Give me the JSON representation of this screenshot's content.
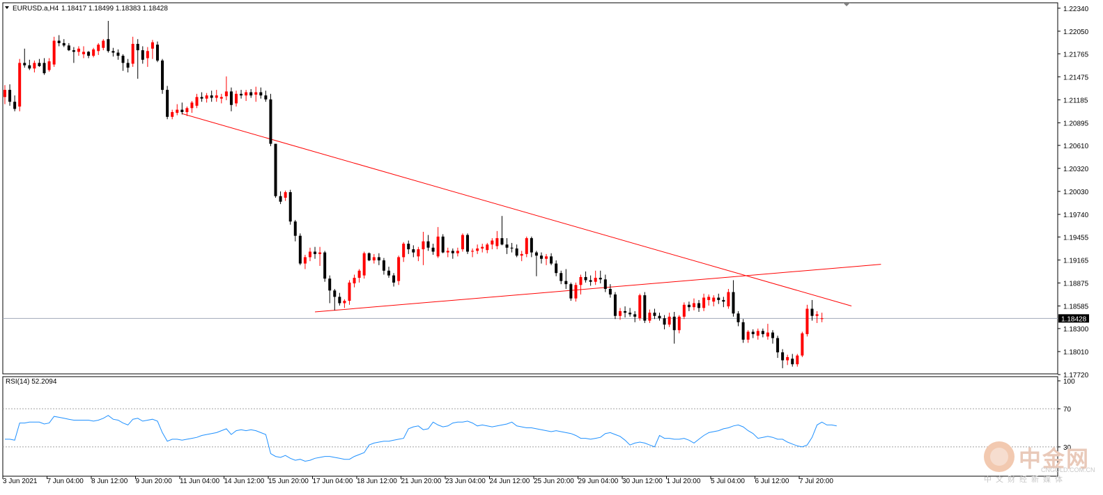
{
  "chart_data": [
    {
      "type": "candlestick",
      "symbol_header": "EURUSD.a,H4",
      "ohlc_header": "1.18417 1.18499 1.18383 1.18428",
      "current_price_label": "1.18428",
      "current_price": 1.18428,
      "ylim": [
        1.1772,
        1.2234
      ],
      "yticks": [
        "1.22340",
        "1.22050",
        "1.21765",
        "1.21475",
        "1.21185",
        "1.20895",
        "1.20610",
        "1.20320",
        "1.20030",
        "1.19740",
        "1.19455",
        "1.19165",
        "1.18875",
        "1.18585",
        "1.18300",
        "1.18010",
        "1.17720"
      ],
      "xticks": [
        "3 Jun 2021",
        "7 Jun 04:00",
        "8 Jun 12:00",
        "9 Jun 20:00",
        "11 Jun 04:00",
        "14 Jun 12:00",
        "15 Jun 20:00",
        "17 Jun 04:00",
        "18 Jun 12:00",
        "21 Jun 20:00",
        "23 Jun 04:00",
        "24 Jun 12:00",
        "25 Jun 20:00",
        "29 Jun 04:00",
        "30 Jun 12:00",
        "1 Jul 20:00",
        "5 Jul 04:00",
        "6 Jul 12:00",
        "7 Jul 20:00"
      ],
      "candles": [
        [
          1.2122,
          1.2137,
          1.2113,
          1.2131
        ],
        [
          1.2131,
          1.2138,
          1.2111,
          1.2116
        ],
        [
          1.2116,
          1.2124,
          1.2104,
          1.2107
        ],
        [
          1.211,
          1.217,
          1.2104,
          1.2165
        ],
        [
          1.2165,
          1.2183,
          1.2159,
          1.2162
        ],
        [
          1.2162,
          1.2169,
          1.2156,
          1.2158
        ],
        [
          1.2158,
          1.2168,
          1.2153,
          1.2165
        ],
        [
          1.2165,
          1.217,
          1.216,
          1.2161
        ],
        [
          1.2165,
          1.2171,
          1.215,
          1.2152
        ],
        [
          1.2156,
          1.2171,
          1.2154,
          1.2167
        ],
        [
          1.2163,
          1.2198,
          1.216,
          1.2193
        ],
        [
          1.2193,
          1.22,
          1.2186,
          1.219
        ],
        [
          1.219,
          1.2195,
          1.2185,
          1.2187
        ],
        [
          1.2187,
          1.219,
          1.218,
          1.2181
        ],
        [
          1.2181,
          1.2185,
          1.2165,
          1.2179
        ],
        [
          1.2179,
          1.2186,
          1.2174,
          1.2183
        ],
        [
          1.2176,
          1.2186,
          1.2171,
          1.2179
        ],
        [
          1.2179,
          1.218,
          1.2171,
          1.2174
        ],
        [
          1.2174,
          1.2184,
          1.2172,
          1.2182
        ],
        [
          1.218,
          1.219,
          1.2175,
          1.2188
        ],
        [
          1.2184,
          1.2195,
          1.2181,
          1.2193
        ],
        [
          1.2195,
          1.2218,
          1.2178,
          1.218
        ],
        [
          1.218,
          1.2184,
          1.2173,
          1.2178
        ],
        [
          1.2178,
          1.2182,
          1.2169,
          1.2174
        ],
        [
          1.2174,
          1.2176,
          1.2155,
          1.2165
        ],
        [
          1.2165,
          1.217,
          1.2153,
          1.2159
        ],
        [
          1.2164,
          1.2198,
          1.216,
          1.2189
        ],
        [
          1.2189,
          1.2195,
          1.2145,
          1.2181
        ],
        [
          1.2181,
          1.2186,
          1.2164,
          1.2169
        ],
        [
          1.2171,
          1.2185,
          1.216,
          1.218
        ],
        [
          1.2183,
          1.2194,
          1.217,
          1.2191
        ],
        [
          1.2188,
          1.2192,
          1.2166,
          1.2168
        ],
        [
          1.2168,
          1.217,
          1.2126,
          1.2131
        ],
        [
          1.2131,
          1.2136,
          1.2094,
          1.2097
        ],
        [
          1.2097,
          1.2106,
          1.2094,
          1.2103
        ],
        [
          1.2102,
          1.2113,
          1.2099,
          1.2106
        ],
        [
          1.2106,
          1.2115,
          1.21,
          1.2103
        ],
        [
          1.2103,
          1.211,
          1.2098,
          1.2108
        ],
        [
          1.2108,
          1.2117,
          1.2102,
          1.2115
        ],
        [
          1.2111,
          1.2126,
          1.2108,
          1.2122
        ],
        [
          1.2122,
          1.2128,
          1.2116,
          1.212
        ],
        [
          1.212,
          1.2127,
          1.2115,
          1.2124
        ],
        [
          1.2124,
          1.213,
          1.2116,
          1.2121
        ],
        [
          1.2121,
          1.2131,
          1.2116,
          1.2124
        ],
        [
          1.212,
          1.2126,
          1.2114,
          1.2122
        ],
        [
          1.2123,
          1.2148,
          1.2118,
          1.2129
        ],
        [
          1.2129,
          1.2134,
          1.2104,
          1.2112
        ],
        [
          1.2114,
          1.213,
          1.211,
          1.2126
        ],
        [
          1.2126,
          1.2131,
          1.212,
          1.2124
        ],
        [
          1.2124,
          1.2131,
          1.2117,
          1.2128
        ],
        [
          1.2128,
          1.2132,
          1.2121,
          1.2124
        ],
        [
          1.2125,
          1.2135,
          1.2116,
          1.2128
        ],
        [
          1.2128,
          1.2134,
          1.212,
          1.2124
        ],
        [
          1.2124,
          1.213,
          1.2116,
          1.2119
        ],
        [
          1.2119,
          1.2126,
          1.206,
          1.2063
        ],
        [
          1.2063,
          1.2063,
          1.1995,
          1.1997
        ],
        [
          1.1997,
          1.2003,
          1.1987,
          1.199
        ],
        [
          1.1995,
          1.2004,
          1.1991,
          1.2002
        ],
        [
          1.2002,
          1.2005,
          1.1961,
          1.1965
        ],
        [
          1.1965,
          1.1967,
          1.194,
          1.1947
        ],
        [
          1.1947,
          1.195,
          1.191,
          1.1912
        ],
        [
          1.1912,
          1.1923,
          1.1905,
          1.192
        ],
        [
          1.192,
          1.1932,
          1.1915,
          1.1927
        ],
        [
          1.1927,
          1.1933,
          1.1918,
          1.1924
        ],
        [
          1.1924,
          1.1933,
          1.1909,
          1.1926
        ],
        [
          1.1926,
          1.1928,
          1.1889,
          1.1893
        ],
        [
          1.1893,
          1.1897,
          1.1862,
          1.1878
        ],
        [
          1.1878,
          1.188,
          1.1853,
          1.187
        ],
        [
          1.187,
          1.1875,
          1.1859,
          1.1862
        ],
        [
          1.1862,
          1.1867,
          1.1856,
          1.1865
        ],
        [
          1.1865,
          1.1891,
          1.186,
          1.1888
        ],
        [
          1.1887,
          1.1898,
          1.1882,
          1.1894
        ],
        [
          1.1894,
          1.1905,
          1.1888,
          1.1903
        ],
        [
          1.1897,
          1.1927,
          1.1893,
          1.1925
        ],
        [
          1.1925,
          1.1926,
          1.1915,
          1.1916
        ],
        [
          1.1916,
          1.1924,
          1.1912,
          1.192
        ],
        [
          1.192,
          1.1925,
          1.191,
          1.1916
        ],
        [
          1.1916,
          1.1919,
          1.1898,
          1.1903
        ],
        [
          1.1903,
          1.1908,
          1.1894,
          1.1897
        ],
        [
          1.1897,
          1.19,
          1.1883,
          1.1888
        ],
        [
          1.189,
          1.1922,
          1.1885,
          1.192
        ],
        [
          1.192,
          1.1939,
          1.1914,
          1.1937
        ],
        [
          1.1937,
          1.1941,
          1.1924,
          1.193
        ],
        [
          1.193,
          1.1935,
          1.192,
          1.1926
        ],
        [
          1.1921,
          1.1933,
          1.1915,
          1.193
        ],
        [
          1.193,
          1.1952,
          1.191,
          1.194
        ],
        [
          1.194,
          1.1948,
          1.1928,
          1.1932
        ],
        [
          1.1932,
          1.1937,
          1.1923,
          1.1927
        ],
        [
          1.1921,
          1.1958,
          1.1919,
          1.1946
        ],
        [
          1.1946,
          1.1949,
          1.1925,
          1.1926
        ],
        [
          1.1926,
          1.1932,
          1.192,
          1.1928
        ],
        [
          1.1928,
          1.1931,
          1.1918,
          1.1925
        ],
        [
          1.1925,
          1.1932,
          1.1921,
          1.1928
        ],
        [
          1.193,
          1.195,
          1.1927,
          1.1948
        ],
        [
          1.1948,
          1.195,
          1.1924,
          1.1927
        ],
        [
          1.1927,
          1.1931,
          1.192,
          1.1928
        ],
        [
          1.1928,
          1.1936,
          1.1924,
          1.1931
        ],
        [
          1.1931,
          1.1937,
          1.1926,
          1.1933
        ],
        [
          1.1929,
          1.1938,
          1.1925,
          1.1936
        ],
        [
          1.1936,
          1.1944,
          1.193,
          1.1941
        ],
        [
          1.1934,
          1.1953,
          1.193,
          1.1944
        ],
        [
          1.1944,
          1.1972,
          1.1935,
          1.1936
        ],
        [
          1.1936,
          1.1944,
          1.1924,
          1.1932
        ],
        [
          1.1932,
          1.1938,
          1.1926,
          1.1931
        ],
        [
          1.1931,
          1.1936,
          1.192,
          1.1922
        ],
        [
          1.1922,
          1.1928,
          1.1915,
          1.1924
        ],
        [
          1.1924,
          1.1946,
          1.192,
          1.1944
        ],
        [
          1.1944,
          1.1946,
          1.192,
          1.1926
        ],
        [
          1.1926,
          1.1928,
          1.1896,
          1.1922
        ],
        [
          1.1922,
          1.1926,
          1.1912,
          1.1918
        ],
        [
          1.1918,
          1.1924,
          1.191,
          1.1921
        ],
        [
          1.1921,
          1.1925,
          1.191,
          1.1912
        ],
        [
          1.1912,
          1.1916,
          1.1896,
          1.19
        ],
        [
          1.19,
          1.1903,
          1.1886,
          1.189
        ],
        [
          1.189,
          1.1905,
          1.188,
          1.1886
        ],
        [
          1.1886,
          1.1888,
          1.1865,
          1.1868
        ],
        [
          1.1868,
          1.1888,
          1.1864,
          1.1885
        ],
        [
          1.1885,
          1.1898,
          1.1873,
          1.1895
        ],
        [
          1.1895,
          1.1902,
          1.1888,
          1.1891
        ],
        [
          1.1891,
          1.1897,
          1.1884,
          1.1889
        ],
        [
          1.1889,
          1.1903,
          1.1885,
          1.1894
        ],
        [
          1.1894,
          1.1903,
          1.1887,
          1.1892
        ],
        [
          1.1892,
          1.1898,
          1.1876,
          1.188
        ],
        [
          1.188,
          1.1886,
          1.1869,
          1.1873
        ],
        [
          1.1873,
          1.1876,
          1.1842,
          1.1846
        ],
        [
          1.1846,
          1.1856,
          1.1841,
          1.1852
        ],
        [
          1.1852,
          1.1858,
          1.1844,
          1.185
        ],
        [
          1.185,
          1.1856,
          1.1845,
          1.1848
        ],
        [
          1.1848,
          1.1852,
          1.1838,
          1.1845
        ],
        [
          1.1843,
          1.1874,
          1.184,
          1.1872
        ],
        [
          1.1872,
          1.1876,
          1.1837,
          1.184
        ],
        [
          1.184,
          1.1854,
          1.1837,
          1.185
        ],
        [
          1.185,
          1.1855,
          1.1842,
          1.1846
        ],
        [
          1.1846,
          1.185,
          1.184,
          1.1843
        ],
        [
          1.1843,
          1.1847,
          1.1829,
          1.1835
        ],
        [
          1.1835,
          1.185,
          1.1832,
          1.1845
        ],
        [
          1.1845,
          1.1851,
          1.1811,
          1.1828
        ],
        [
          1.1828,
          1.1847,
          1.1824,
          1.1845
        ],
        [
          1.1845,
          1.1863,
          1.1842,
          1.186
        ],
        [
          1.186,
          1.1864,
          1.1852,
          1.1857
        ],
        [
          1.1857,
          1.1868,
          1.1853,
          1.1862
        ],
        [
          1.1862,
          1.1866,
          1.1851,
          1.1856
        ],
        [
          1.1856,
          1.1874,
          1.1852,
          1.1869
        ],
        [
          1.1866,
          1.1873,
          1.1859,
          1.187
        ],
        [
          1.1864,
          1.1872,
          1.1858,
          1.1869
        ],
        [
          1.1869,
          1.1874,
          1.1861,
          1.1866
        ],
        [
          1.1866,
          1.187,
          1.1857,
          1.1864
        ],
        [
          1.1858,
          1.188,
          1.1855,
          1.1876
        ],
        [
          1.1876,
          1.1891,
          1.1845,
          1.1849
        ],
        [
          1.1849,
          1.1852,
          1.1833,
          1.1838
        ],
        [
          1.1838,
          1.1842,
          1.1812,
          1.1816
        ],
        [
          1.1816,
          1.1828,
          1.1812,
          1.1826
        ],
        [
          1.1826,
          1.1829,
          1.1818,
          1.1823
        ],
        [
          1.1821,
          1.183,
          1.1816,
          1.1827
        ],
        [
          1.1827,
          1.183,
          1.1819,
          1.1823
        ],
        [
          1.182,
          1.1836,
          1.1816,
          1.1825
        ],
        [
          1.1825,
          1.1828,
          1.1811,
          1.1818
        ],
        [
          1.1818,
          1.1821,
          1.1793,
          1.18
        ],
        [
          1.18,
          1.1804,
          1.178,
          1.179
        ],
        [
          1.179,
          1.1797,
          1.1784,
          1.1794
        ],
        [
          1.1792,
          1.1798,
          1.1782,
          1.1785
        ],
        [
          1.1785,
          1.1798,
          1.1782,
          1.1796
        ],
        [
          1.1796,
          1.1826,
          1.1794,
          1.1824
        ],
        [
          1.1823,
          1.186,
          1.182,
          1.1855
        ],
        [
          1.1855,
          1.1866,
          1.184,
          1.1846
        ],
        [
          1.1846,
          1.1852,
          1.1837,
          1.1848
        ],
        [
          1.1842,
          1.185,
          1.1838,
          1.1843
        ]
      ],
      "trendlines": [
        {
          "name": "descending-resistance",
          "color": "#ff0000",
          "start": [
            36,
            1.2101
          ],
          "end": [
            172,
            1.18585
          ]
        },
        {
          "name": "ascending-support",
          "color": "#ff0000",
          "start": [
            63,
            1.1851
          ],
          "end": [
            178,
            1.1911
          ]
        }
      ]
    },
    {
      "type": "line",
      "indicator_label": "RSI(14) 52.2094",
      "ylim": [
        0,
        100
      ],
      "levels": [
        30,
        70
      ],
      "yticks": [
        "100",
        "70",
        "30"
      ],
      "values": [
        38,
        38,
        37,
        55,
        55,
        56,
        56,
        56,
        54,
        55,
        62,
        61,
        60,
        59,
        58,
        58,
        58,
        58,
        57,
        58,
        60,
        63,
        59,
        58,
        55,
        53,
        59,
        60,
        57,
        58,
        59,
        57,
        45,
        36,
        38,
        38,
        37,
        38,
        39,
        40,
        42,
        43,
        44,
        45,
        47,
        49,
        43,
        47,
        48,
        47,
        48,
        47,
        45,
        43,
        23,
        20,
        19,
        21,
        18,
        16,
        17,
        15,
        16,
        18,
        19,
        20,
        20,
        19,
        18,
        17,
        17,
        20,
        22,
        24,
        32,
        34,
        35,
        36,
        36,
        37,
        38,
        39,
        49,
        51,
        52,
        48,
        49,
        56,
        53,
        51,
        52,
        55,
        56,
        56,
        57,
        55,
        52,
        53,
        52,
        51,
        52,
        53,
        54,
        56,
        52,
        51,
        50,
        50,
        49,
        48,
        47,
        46,
        47,
        46,
        45,
        44,
        42,
        39,
        39,
        38,
        39,
        40,
        44,
        45,
        43,
        41,
        37,
        32,
        34,
        35,
        34,
        32,
        30,
        42,
        39,
        39,
        38,
        38,
        39,
        37,
        34,
        38,
        42,
        45,
        46,
        47,
        49,
        50,
        52,
        53,
        51,
        47,
        44,
        39,
        40,
        41,
        40,
        38,
        38,
        35,
        33,
        31,
        30,
        32,
        40,
        53,
        56,
        53,
        53,
        52
      ]
    }
  ],
  "colors": {
    "bull": "#ff0000",
    "bear": "#000000",
    "trendline": "#ff0000",
    "rsi_line": "#1e90ff",
    "price_line": "#a0a8b8"
  },
  "watermark": {
    "title": "中金网",
    "domain": "CNGOLD.COM.CN",
    "subtitle": "中文财经新媒体"
  }
}
